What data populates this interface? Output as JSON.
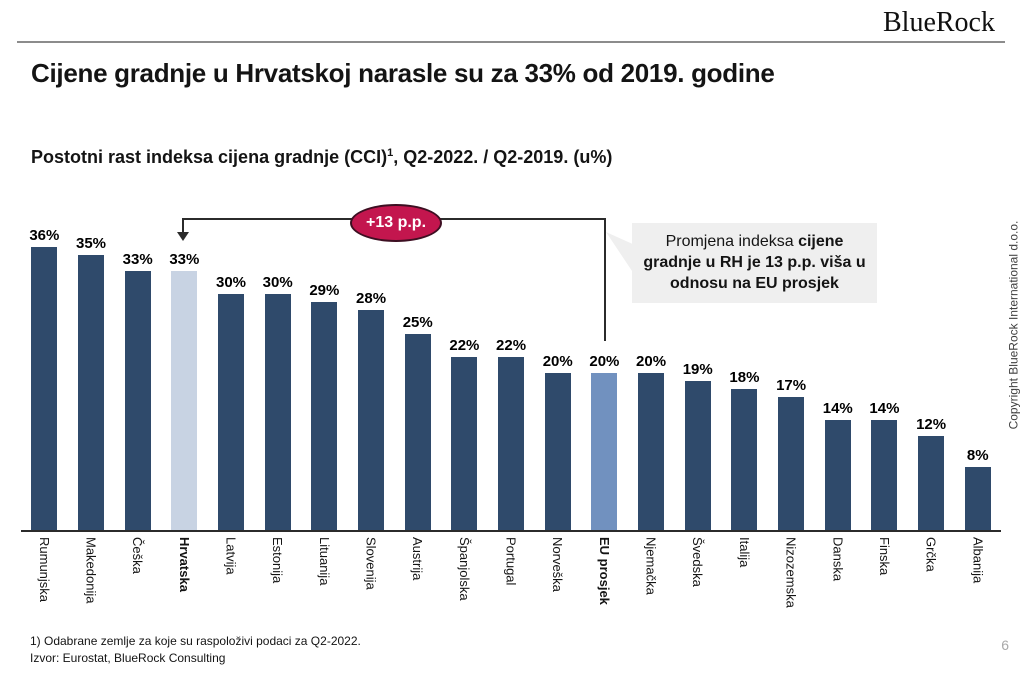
{
  "header": {
    "logo_text": "BlueRock"
  },
  "slide": {
    "title": "Cijene gradnje u Hrvatskoj narasle su za 33% od 2019. godine",
    "subtitle_prefix": "Postotni rast indeksa cijena gradnje (CCI)",
    "subtitle_superscript": "1",
    "subtitle_suffix": ", Q2-2022. / Q2-2019. (u%)",
    "page_number": "6",
    "copyright": "Copyright BlueRock International d.o.o."
  },
  "annotation": {
    "badge_label": "+13 p.p.",
    "callout_normal": "Promjena indeksa ",
    "callout_bold": "cijene gradnje u RH je 13 p.p. viša u odnosu na EU prosjek"
  },
  "chart_data": {
    "type": "bar",
    "title": "Postotni rast indeksa cijena gradnje (CCI), Q2-2022. / Q2-2019. (u%)",
    "categories": [
      "Rumunjska",
      "Makedonija",
      "Češka",
      "Hrvatska",
      "Latvija",
      "Estonija",
      "Lituanija",
      "Slovenija",
      "Austrija",
      "Španjolska",
      "Portugal",
      "Norveška",
      "EU prosjek",
      "Njemačka",
      "Švedska",
      "Italija",
      "Nizozemska",
      "Danska",
      "Finska",
      "Grčka",
      "Albanija"
    ],
    "values": [
      36,
      35,
      33,
      33,
      30,
      30,
      29,
      28,
      25,
      22,
      22,
      20,
      20,
      20,
      19,
      18,
      17,
      14,
      14,
      12,
      8
    ],
    "unit": "%",
    "emphasis": [
      "default",
      "default",
      "default",
      "croatia",
      "default",
      "default",
      "default",
      "default",
      "default",
      "default",
      "default",
      "default",
      "eu_average",
      "default",
      "default",
      "default",
      "default",
      "default",
      "default",
      "default",
      "default"
    ],
    "bold_categories": [
      "Hrvatska",
      "EU prosjek"
    ],
    "value_labels": true,
    "y_axis_visible": false,
    "grid": false,
    "legend": false,
    "ylim": [
      0,
      38
    ],
    "xlabel": "",
    "ylabel": ""
  },
  "colors": {
    "bar_default": "#2F4A6B",
    "bar_croatia": "#C8D3E3",
    "bar_eu_average": "#7191BF",
    "badge_bg": "#C3164E",
    "badge_text": "#FFFFFF",
    "callout_bg": "#EFEFEF",
    "line": "#2B2B2B"
  },
  "footer": {
    "footnote": "1) Odabrane zemlje za koje su raspoloživi podaci za Q2-2022.",
    "source": "Izvor: Eurostat, BlueRock Consulting"
  }
}
